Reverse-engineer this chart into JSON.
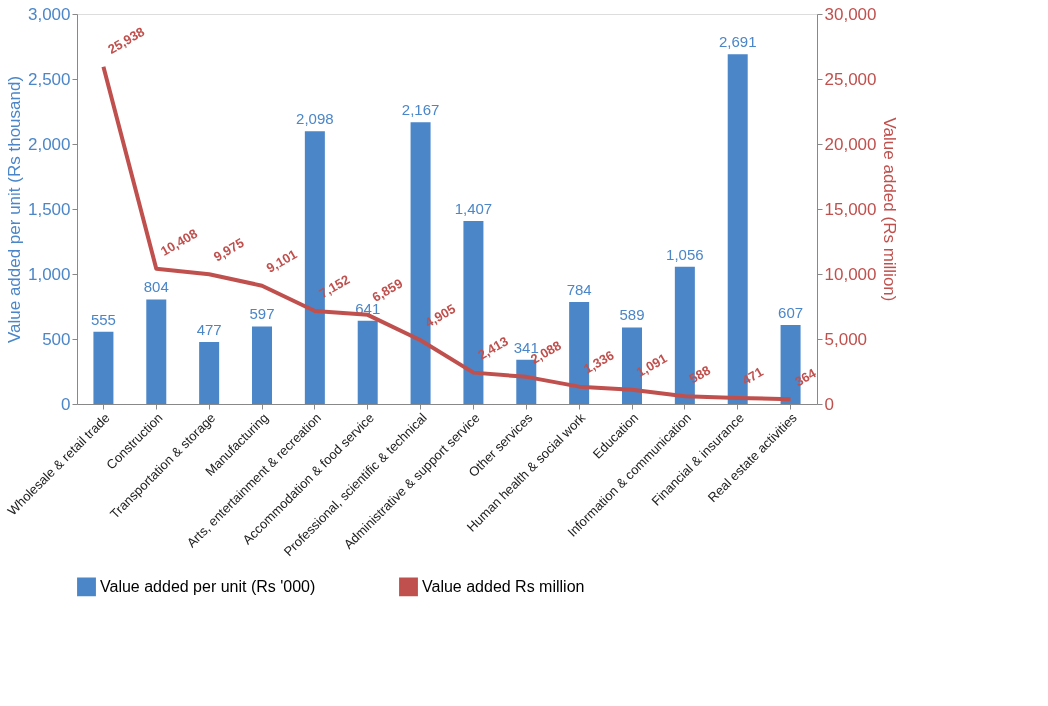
{
  "chart_data": {
    "type": "bar",
    "categories": [
      "Wholesale & retail trade",
      "Construction",
      "Transportation & storage",
      "Manufacturing",
      "Arts, entertainment & recreation",
      "Accommodation & food service",
      "Professional, scientific & technical",
      "Administrative & support service",
      "Other services",
      "Human health & social work",
      "Education",
      "Information & communication",
      "Financial & insurance",
      "Real estate activities"
    ],
    "series": [
      {
        "name": "Value added per unit (Rs '000)",
        "color": "#4a86c8",
        "values": [
          555,
          804,
          477,
          597,
          2098,
          641,
          2167,
          1407,
          341,
          784,
          589,
          1056,
          2691,
          607
        ],
        "value_labels": [
          "555",
          "804",
          "477",
          "597",
          "2,098",
          "641",
          "2,167",
          "1,407",
          "341",
          "784",
          "589",
          "1,056",
          "2,691",
          "607"
        ]
      },
      {
        "name": "Value added Rs million",
        "type": "line",
        "axis": "y2",
        "color": "#c0504d",
        "values": [
          25938,
          10408,
          9975,
          9101,
          7152,
          6859,
          4905,
          2413,
          2088,
          1336,
          1091,
          588,
          471,
          364
        ],
        "value_labels": [
          "25,938",
          "10,408",
          "9,975",
          "9,101",
          "7,152",
          "6,859",
          "4,905",
          "2,413",
          "2,088",
          "1,336",
          "1,091",
          "588",
          "471",
          "364"
        ]
      }
    ],
    "ylabel": "Value added per unit (Rs thousand)",
    "y2label": "Value added (Rs million)",
    "ylim": [
      0,
      3000
    ],
    "yticks": [
      {
        "value": 0,
        "label": "0"
      },
      {
        "value": 500,
        "label": "500"
      },
      {
        "value": 1000,
        "label": "1,000"
      },
      {
        "value": 1500,
        "label": "1,500"
      },
      {
        "value": 2000,
        "label": "2,000"
      },
      {
        "value": 2500,
        "label": "2,500"
      },
      {
        "value": 3000,
        "label": "3,000"
      }
    ],
    "y2lim": [
      0,
      30000
    ],
    "y2ticks": [
      {
        "value": 0,
        "label": "0"
      },
      {
        "value": 5000,
        "label": "5,000"
      },
      {
        "value": 10000,
        "label": "10,000"
      },
      {
        "value": 15000,
        "label": "15,000"
      },
      {
        "value": 20000,
        "label": "20,000"
      },
      {
        "value": 25000,
        "label": "25,000"
      },
      {
        "value": 30000,
        "label": "30,000"
      }
    ],
    "grid": false,
    "legend": "bottom",
    "marker": "none",
    "line_style": "solid"
  }
}
